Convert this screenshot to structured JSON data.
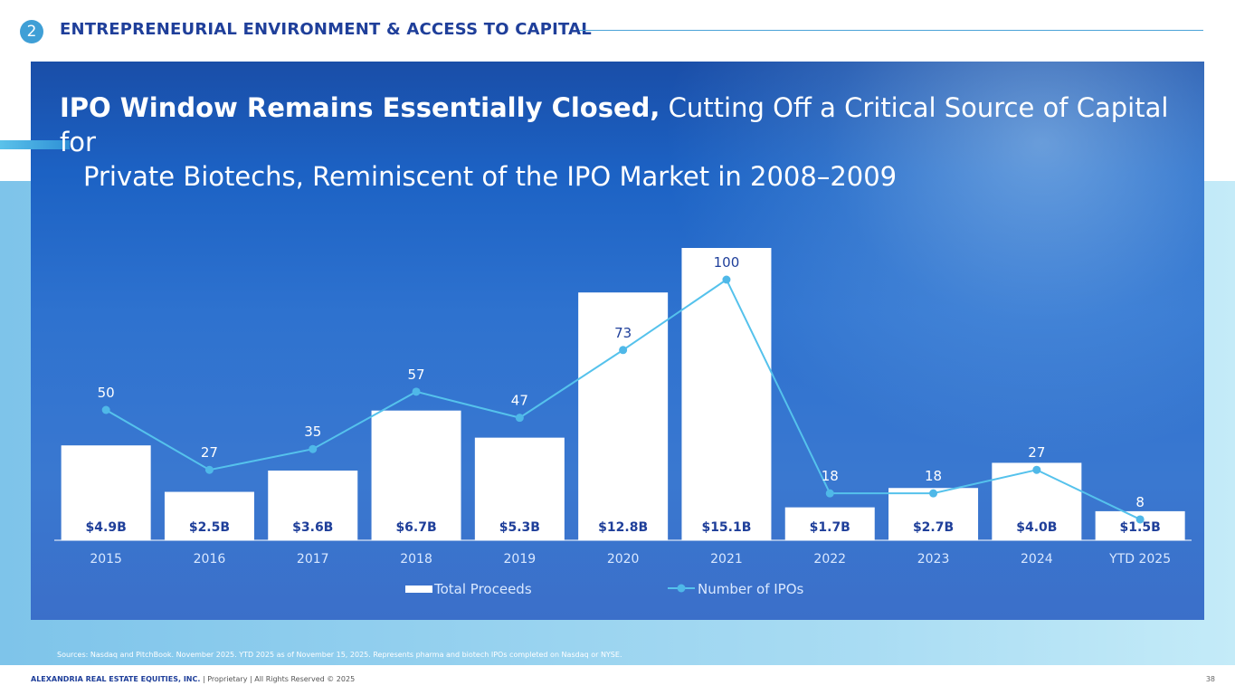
{
  "section": {
    "number": "2",
    "title": "ENTREPRENEURIAL ENVIRONMENT & ACCESS TO CAPITAL"
  },
  "headline": {
    "bold": "IPO Window Remains Essentially Closed,",
    "rest1": " Cutting Off a Critical Source of Capital for",
    "rest2": "Private Biotechs, Reminiscent of the IPO Market in 2008–2009"
  },
  "colors": {
    "bar": "#ffffff",
    "line": "#55c2ec",
    "dot": "#4fb8e8",
    "bar_label": "#1f3f9a",
    "axis_label": "#d9e8ff"
  },
  "chart_data": {
    "type": "bar",
    "categories": [
      "2015",
      "2016",
      "2017",
      "2018",
      "2019",
      "2020",
      "2021",
      "2022",
      "2023",
      "2024",
      "YTD 2025"
    ],
    "series": [
      {
        "name": "Total Proceeds",
        "type": "bar",
        "values": [
          4.9,
          2.5,
          3.6,
          6.7,
          5.3,
          12.8,
          15.1,
          1.7,
          2.7,
          4.0,
          1.5
        ],
        "labels": [
          "$4.9B",
          "$2.5B",
          "$3.6B",
          "$6.7B",
          "$5.3B",
          "$12.8B",
          "$15.1B",
          "$1.7B",
          "$2.7B",
          "$4.0B",
          "$1.5B"
        ]
      },
      {
        "name": "Number of IPOs",
        "type": "line",
        "values": [
          50,
          27,
          35,
          57,
          47,
          73,
          100,
          18,
          18,
          27,
          8
        ],
        "labels": [
          "50",
          "27",
          "35",
          "57",
          "47",
          "73",
          "100",
          "18",
          "18",
          "27",
          "8"
        ]
      }
    ],
    "legend": [
      "Total Proceeds",
      "Number of IPOs"
    ],
    "legend_position": "bottom"
  },
  "sources": "Sources: Nasdaq and PitchBook. November 2025. YTD 2025 as of November 15, 2025. Represents pharma and biotech IPOs completed on Nasdaq or NYSE.",
  "footer": {
    "company": "ALEXANDRIA REAL ESTATE EQUITIES, INC.",
    "rest": " | Proprietary | All Rights Reserved © 2025"
  },
  "page_number": "38"
}
